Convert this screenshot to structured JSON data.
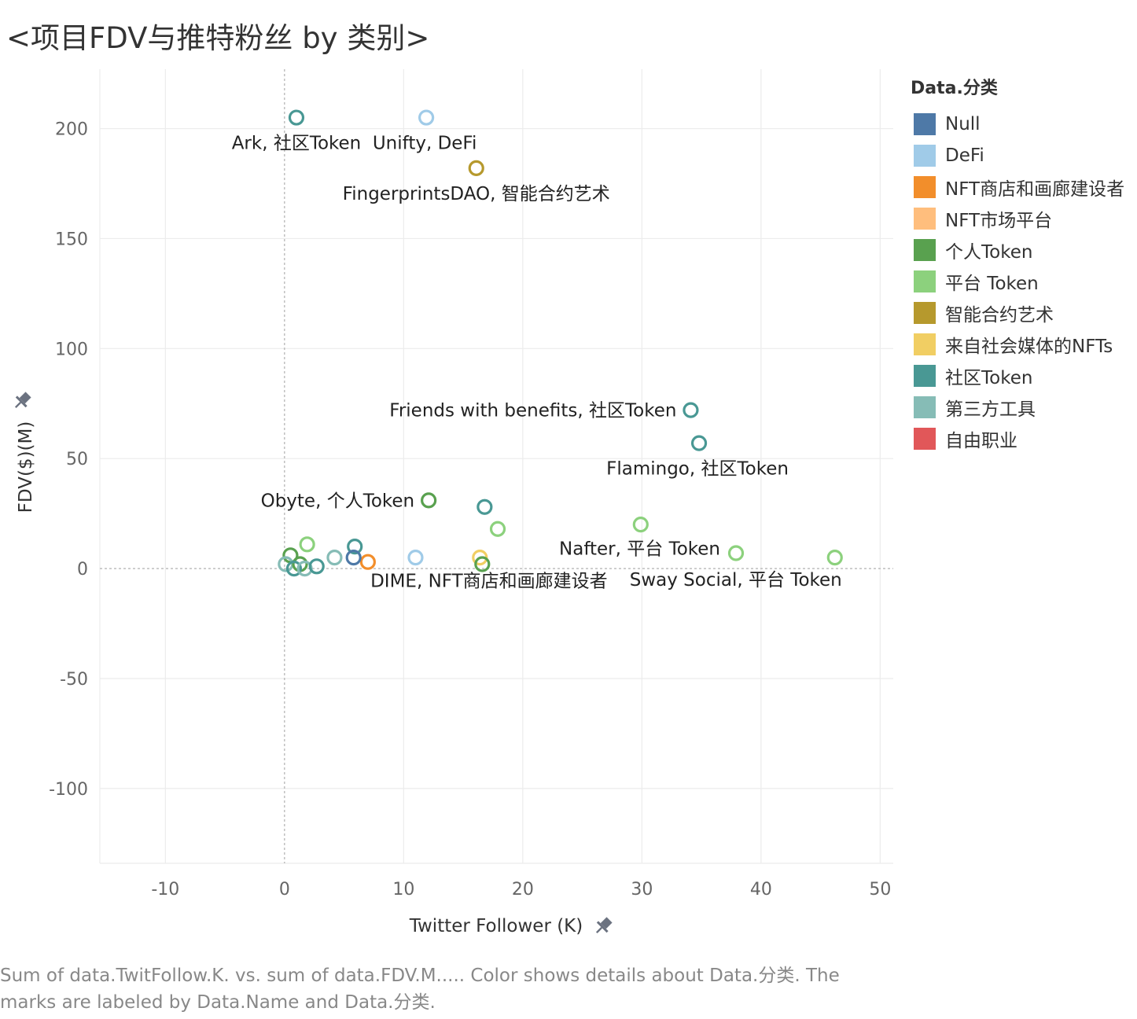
{
  "title": "<项目FDV与推特粉丝 by 类别>",
  "caption": "Sum of data.TwitFollow.K. vs. sum of data.FDV.M.....  Color shows details about Data.分类.  The marks are labeled by Data.Name and Data.分类.",
  "legend": {
    "title": "Data.分类",
    "items": [
      {
        "label": "Null",
        "color": "#4e79a7"
      },
      {
        "label": "DeFi",
        "color": "#a0cbe8"
      },
      {
        "label": "NFT商店和画廊建设者",
        "color": "#f28e2b"
      },
      {
        "label": "NFT市场平台",
        "color": "#ffbe7d"
      },
      {
        "label": "个人Token",
        "color": "#59a14f"
      },
      {
        "label": "平台 Token",
        "color": "#8cd17d"
      },
      {
        "label": "智能合约艺术",
        "color": "#b6992d"
      },
      {
        "label": "来自社会媒体的NFTs",
        "color": "#f1ce63"
      },
      {
        "label": "社区Token",
        "color": "#499894"
      },
      {
        "label": "第三方工具",
        "color": "#86bcb6"
      },
      {
        "label": "自由职业",
        "color": "#e15759"
      }
    ]
  },
  "chart_data": {
    "type": "scatter",
    "xlabel": "Twitter Follower (K)",
    "ylabel": "FDV($)(M)",
    "xlim": [
      -15.5,
      51.1
    ],
    "ylim": [
      -134,
      227
    ],
    "xticks": [
      -10,
      0,
      10,
      20,
      30,
      40,
      50
    ],
    "yticks": [
      -100,
      -50,
      0,
      50,
      100,
      150,
      200
    ],
    "grid": true,
    "legend_position": "right",
    "points": [
      {
        "x": 1.0,
        "y": 205,
        "category": "社区Token",
        "label": "Ark, 社区Token"
      },
      {
        "x": 11.9,
        "y": 205,
        "category": "DeFi",
        "label": "Unifty, DeFi"
      },
      {
        "x": 16.1,
        "y": 182,
        "category": "智能合约艺术",
        "label": "FingerprintsDAO, 智能合约艺术"
      },
      {
        "x": 34.1,
        "y": 72,
        "category": "社区Token",
        "label": "Friends with benefits, 社区Token"
      },
      {
        "x": 34.8,
        "y": 57,
        "category": "社区Token",
        "label": "Flamingo, 社区Token"
      },
      {
        "x": 12.1,
        "y": 31,
        "category": "个人Token",
        "label": "Obyte, 个人Token"
      },
      {
        "x": 16.8,
        "y": 28,
        "category": "社区Token",
        "label": ""
      },
      {
        "x": 17.9,
        "y": 18,
        "category": "平台 Token",
        "label": ""
      },
      {
        "x": 29.9,
        "y": 20,
        "category": "平台 Token",
        "label": ""
      },
      {
        "x": 37.9,
        "y": 7,
        "category": "平台 Token",
        "label": "Nafter, 平台 Token"
      },
      {
        "x": 46.2,
        "y": 5,
        "category": "平台 Token",
        "label": "Sway Social, 平台 Token"
      },
      {
        "x": 16.4,
        "y": 5,
        "category": "来自社会媒体的NFTs",
        "label": ""
      },
      {
        "x": 16.6,
        "y": 2,
        "category": "个人Token",
        "label": ""
      },
      {
        "x": 7.0,
        "y": 3,
        "category": "NFT商店和画廊建设者",
        "label": "DIME, NFT商店和画廊建设者"
      },
      {
        "x": 5.9,
        "y": 10,
        "category": "社区Token",
        "label": ""
      },
      {
        "x": 5.8,
        "y": 5,
        "category": "Null",
        "label": ""
      },
      {
        "x": 11.0,
        "y": 5,
        "category": "DeFi",
        "label": ""
      },
      {
        "x": 4.2,
        "y": 5,
        "category": "第三方工具",
        "label": ""
      },
      {
        "x": 1.9,
        "y": 11,
        "category": "平台 Token",
        "label": ""
      },
      {
        "x": 0.5,
        "y": 6,
        "category": "个人Token",
        "label": ""
      },
      {
        "x": 0.1,
        "y": 2,
        "category": "第三方工具",
        "label": ""
      },
      {
        "x": 1.3,
        "y": 2,
        "category": "个人Token",
        "label": ""
      },
      {
        "x": 0.8,
        "y": 0,
        "category": "社区Token",
        "label": ""
      },
      {
        "x": 1.7,
        "y": 0,
        "category": "第三方工具",
        "label": ""
      },
      {
        "x": 2.7,
        "y": 1,
        "category": "社区Token",
        "label": ""
      }
    ]
  }
}
